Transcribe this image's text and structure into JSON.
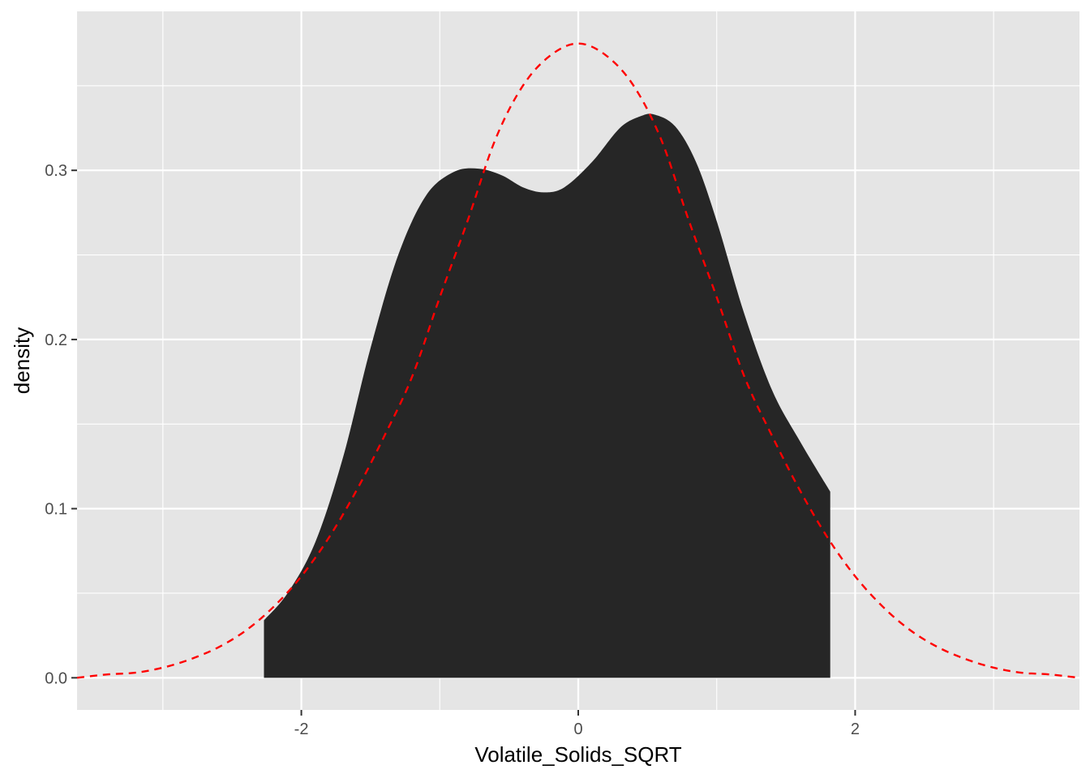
{
  "chart_data": {
    "type": "area",
    "title": "",
    "xlabel": "Volatile_Solids_SQRT",
    "ylabel": "density",
    "xlim": [
      -3.62,
      3.62
    ],
    "ylim": [
      -0.019,
      0.394
    ],
    "x_ticks": [
      -2,
      0,
      2
    ],
    "x_tick_labels": [
      "-2",
      "0",
      "2"
    ],
    "y_ticks": [
      0.0,
      0.1,
      0.2,
      0.3
    ],
    "y_tick_labels": [
      "0.0",
      "0.1",
      "0.2",
      "0.3"
    ],
    "grid": true,
    "colors": {
      "panel_background": "#e5e5e5",
      "grid": "#ffffff",
      "density_fill": "#262626",
      "normal_curve": "#ff0000"
    },
    "series": [
      {
        "kind": "density-area",
        "x": [
          -2.27,
          -2.1,
          -1.9,
          -1.7,
          -1.5,
          -1.3,
          -1.1,
          -0.9,
          -0.72,
          -0.55,
          -0.4,
          -0.25,
          -0.1,
          0.1,
          0.3,
          0.45,
          0.55,
          0.7,
          0.85,
          1.0,
          1.2,
          1.4,
          1.6,
          1.82
        ],
        "y": [
          0.034,
          0.05,
          0.08,
          0.13,
          0.195,
          0.25,
          0.285,
          0.299,
          0.301,
          0.297,
          0.29,
          0.287,
          0.29,
          0.305,
          0.325,
          0.332,
          0.333,
          0.326,
          0.305,
          0.27,
          0.215,
          0.17,
          0.14,
          0.11
        ]
      },
      {
        "kind": "normal-curve",
        "line_style": "dashed",
        "x": [
          -3.62,
          -3.4,
          -3.2,
          -3.0,
          -2.8,
          -2.6,
          -2.4,
          -2.2,
          -2.0,
          -1.8,
          -1.6,
          -1.4,
          -1.2,
          -1.0,
          -0.8,
          -0.6,
          -0.4,
          -0.2,
          0.0,
          0.2,
          0.4,
          0.6,
          0.8,
          1.0,
          1.2,
          1.4,
          1.6,
          1.8,
          2.0,
          2.2,
          2.4,
          2.6,
          2.8,
          3.0,
          3.2,
          3.4,
          3.62
        ],
        "y": [
          0.0,
          0.002,
          0.003,
          0.006,
          0.011,
          0.018,
          0.028,
          0.042,
          0.06,
          0.083,
          0.111,
          0.143,
          0.178,
          0.225,
          0.27,
          0.318,
          0.35,
          0.368,
          0.375,
          0.368,
          0.35,
          0.318,
          0.27,
          0.225,
          0.178,
          0.143,
          0.111,
          0.083,
          0.06,
          0.042,
          0.028,
          0.018,
          0.011,
          0.006,
          0.003,
          0.002,
          0.0
        ]
      }
    ]
  }
}
